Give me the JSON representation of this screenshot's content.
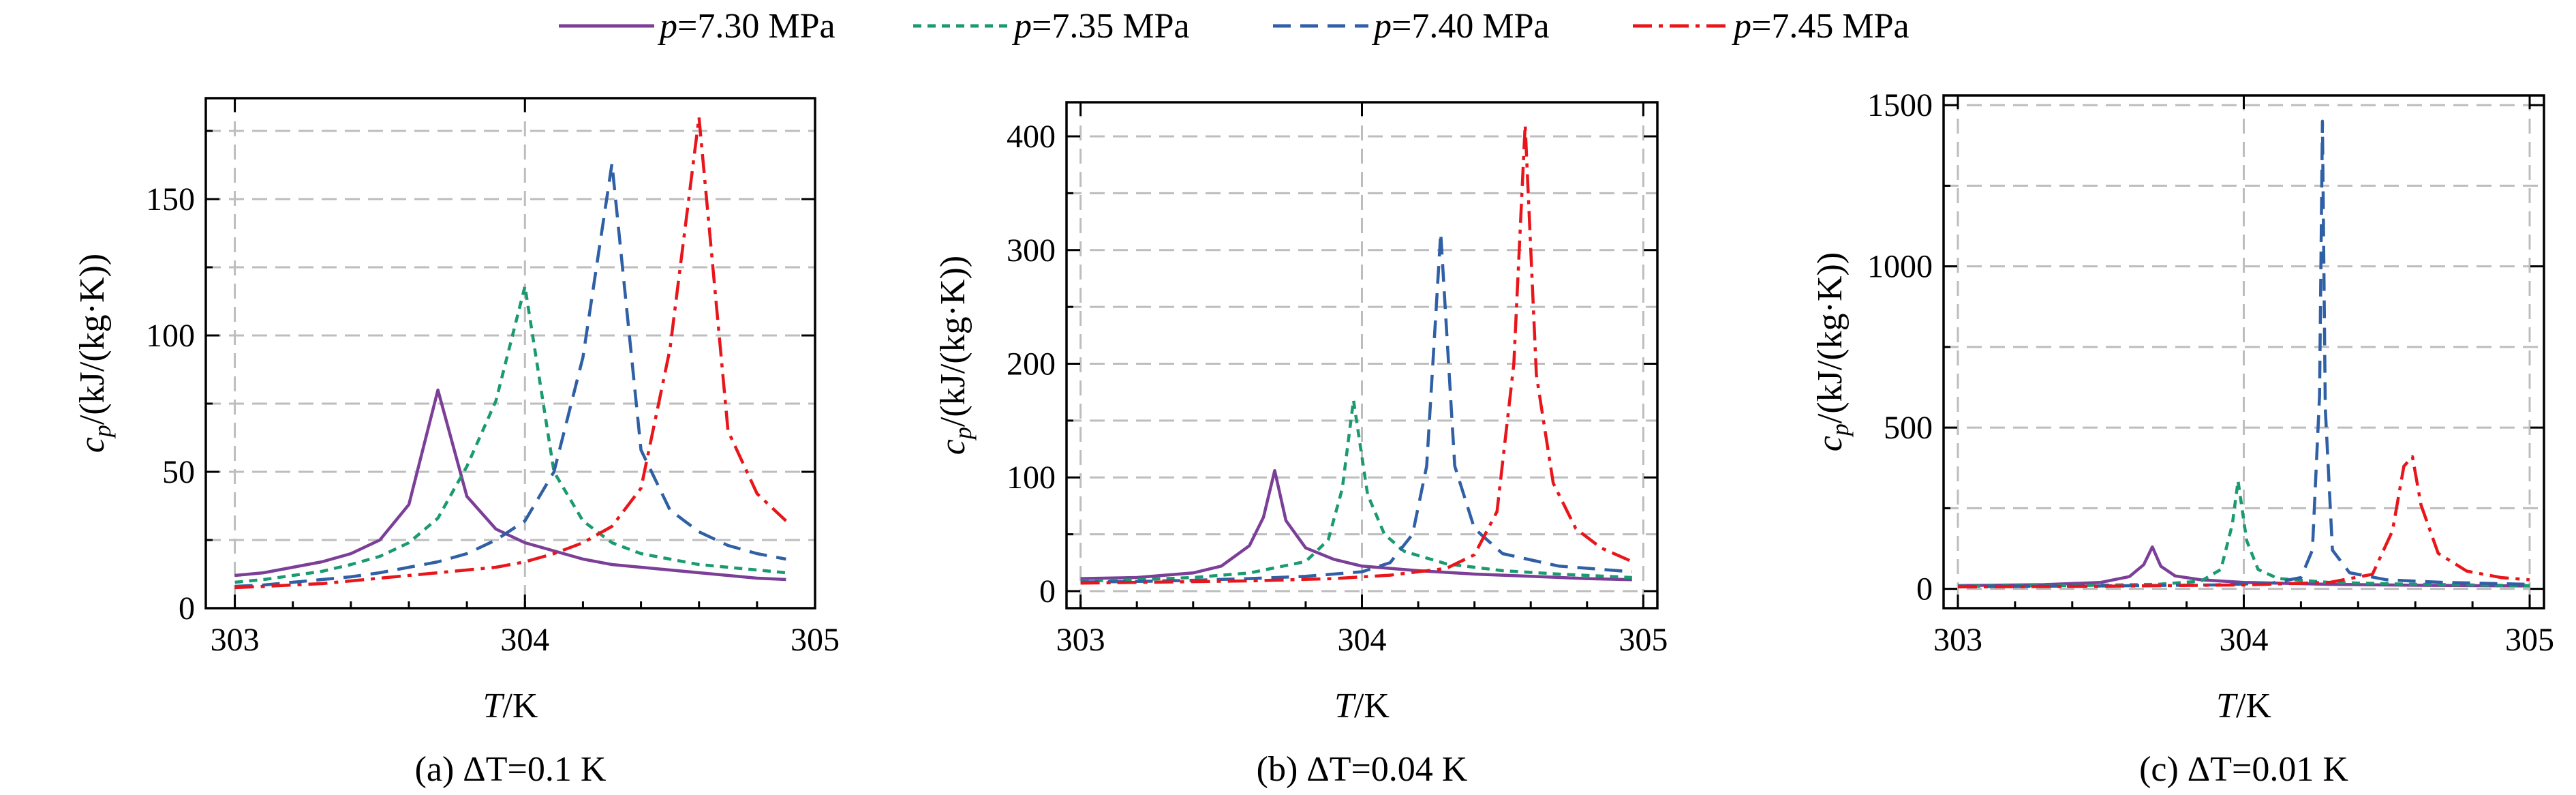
{
  "legend": {
    "location": "top-center",
    "entries": [
      {
        "var": "p",
        "value": "=7.30 MPa",
        "color": "#7b3f98",
        "dash": "solid"
      },
      {
        "var": "p",
        "value": "=7.35 MPa",
        "color": "#1a9a70",
        "dash": "dashed"
      },
      {
        "var": "p",
        "value": "=7.40 MPa",
        "color": "#2f5fa5",
        "dash": "longdash"
      },
      {
        "var": "p",
        "value": "=7.45 MPa",
        "color": "#e8161b",
        "dash": "dashdot"
      }
    ]
  },
  "chart_data": [
    {
      "type": "line",
      "caption": "(a) ΔT=0.1 K",
      "xlabel": {
        "var": "T",
        "rest": "/K"
      },
      "ylabel": {
        "var": "c",
        "sub": "p",
        "rest": "/(kJ/(kg·K))"
      },
      "xlim": [
        302.9,
        305.0
      ],
      "ylim": [
        0,
        187
      ],
      "xticks": [
        303,
        304,
        305
      ],
      "yticks": [
        0,
        50,
        100,
        150
      ],
      "grid": true,
      "series": [
        {
          "x": [
            303.0,
            303.1,
            303.2,
            303.3,
            303.4,
            303.5,
            303.6,
            303.7,
            303.8,
            303.9,
            304.0,
            304.1,
            304.2,
            304.3,
            304.4,
            304.5,
            304.6,
            304.7,
            304.8,
            304.9
          ],
          "y": [
            12,
            13,
            15,
            17,
            20,
            25,
            38,
            80,
            41,
            29,
            24,
            21,
            18,
            16,
            15,
            14,
            13,
            12,
            11,
            10.5
          ]
        },
        {
          "x": [
            303.0,
            303.1,
            303.2,
            303.3,
            303.4,
            303.5,
            303.6,
            303.7,
            303.8,
            303.9,
            304.0,
            304.1,
            304.2,
            304.3,
            304.4,
            304.5,
            304.6,
            304.7,
            304.8,
            304.9
          ],
          "y": [
            9.5,
            10.5,
            12,
            13.5,
            16,
            19,
            24,
            33,
            52,
            76,
            118,
            50,
            32,
            24,
            20,
            18,
            16,
            15,
            14,
            13
          ]
        },
        {
          "x": [
            303.0,
            303.1,
            303.2,
            303.3,
            303.4,
            303.5,
            303.6,
            303.7,
            303.8,
            303.9,
            304.0,
            304.1,
            304.2,
            304.3,
            304.4,
            304.5,
            304.6,
            304.7,
            304.8,
            304.9
          ],
          "y": [
            8,
            8.5,
            9.5,
            10.5,
            11.5,
            13,
            15,
            17,
            20,
            25,
            32,
            50,
            92,
            163,
            58,
            36,
            28,
            23,
            20,
            18
          ]
        },
        {
          "x": [
            303.0,
            303.1,
            303.2,
            303.3,
            303.4,
            303.5,
            303.6,
            303.7,
            303.8,
            303.9,
            304.0,
            304.1,
            304.2,
            304.3,
            304.4,
            304.5,
            304.6,
            304.7,
            304.8,
            304.9
          ],
          "y": [
            7.5,
            8,
            8.5,
            9,
            10,
            11,
            12,
            13,
            14,
            15,
            17,
            20,
            24,
            30,
            44,
            95,
            180,
            65,
            42,
            32
          ]
        }
      ]
    },
    {
      "type": "line",
      "caption": "(b) ΔT=0.04 K",
      "xlabel": {
        "var": "T",
        "rest": "/K"
      },
      "ylabel": {
        "var": "c",
        "sub": "p",
        "rest": "/(kJ/(kg·K))"
      },
      "xlim": [
        302.95,
        305.05
      ],
      "ylim": [
        -15,
        430
      ],
      "xticks": [
        303,
        304,
        305
      ],
      "yticks": [
        0,
        100,
        200,
        300,
        400
      ],
      "grid": true,
      "series": [
        {
          "x": [
            303.0,
            303.2,
            303.4,
            303.5,
            303.6,
            303.65,
            303.69,
            303.73,
            303.8,
            303.9,
            304.0,
            304.2,
            304.4,
            304.6,
            304.8,
            304.96
          ],
          "y": [
            11,
            12,
            16,
            22,
            40,
            65,
            106,
            62,
            38,
            28,
            22,
            18,
            15,
            13,
            11,
            10
          ]
        },
        {
          "x": [
            303.0,
            303.2,
            303.4,
            303.6,
            303.8,
            303.88,
            303.93,
            303.97,
            304.02,
            304.08,
            304.15,
            304.3,
            304.5,
            304.7,
            304.96
          ],
          "y": [
            9,
            10,
            12,
            16,
            26,
            45,
            90,
            168,
            85,
            50,
            35,
            24,
            18,
            15,
            12
          ]
        },
        {
          "x": [
            303.0,
            303.2,
            303.4,
            303.6,
            303.8,
            304.0,
            304.1,
            304.18,
            304.23,
            304.28,
            304.33,
            304.4,
            304.5,
            304.7,
            304.96
          ],
          "y": [
            8,
            8.5,
            9.5,
            11,
            13,
            17,
            25,
            50,
            110,
            315,
            110,
            55,
            33,
            22,
            17
          ]
        },
        {
          "x": [
            303.0,
            303.3,
            303.6,
            303.9,
            304.1,
            304.3,
            304.4,
            304.48,
            304.54,
            304.58,
            304.62,
            304.68,
            304.76,
            304.85,
            304.96
          ],
          "y": [
            7,
            8,
            9,
            11,
            14,
            20,
            32,
            70,
            200,
            410,
            190,
            95,
            55,
            38,
            26
          ]
        }
      ]
    },
    {
      "type": "line",
      "caption": "(c) ΔT=0.01 K",
      "xlabel": {
        "var": "T",
        "rest": "/K"
      },
      "ylabel": {
        "var": "c",
        "sub": "p",
        "rest": "/(kJ/(kg·K))"
      },
      "xlim": [
        302.95,
        305.05
      ],
      "ylim": [
        -60,
        1530
      ],
      "xticks": [
        303,
        304,
        305
      ],
      "yticks": [
        0,
        500,
        1000,
        1500
      ],
      "grid": true,
      "series": [
        {
          "x": [
            303.0,
            303.3,
            303.5,
            303.6,
            303.65,
            303.68,
            303.71,
            303.76,
            303.85,
            304.0,
            304.3,
            304.6,
            305.0
          ],
          "y": [
            10,
            13,
            20,
            38,
            75,
            130,
            70,
            40,
            28,
            20,
            14,
            11,
            9
          ]
        },
        {
          "x": [
            303.0,
            303.4,
            303.7,
            303.85,
            303.92,
            303.96,
            303.98,
            304.01,
            304.05,
            304.12,
            304.3,
            304.6,
            305.0
          ],
          "y": [
            8,
            10,
            14,
            24,
            60,
            200,
            335,
            150,
            60,
            32,
            20,
            14,
            10
          ]
        },
        {
          "x": [
            303.0,
            303.5,
            303.9,
            304.1,
            304.2,
            304.24,
            304.265,
            304.275,
            304.285,
            304.31,
            304.37,
            304.5,
            304.7,
            305.0
          ],
          "y": [
            7,
            9,
            12,
            18,
            35,
            120,
            600,
            1450,
            560,
            120,
            50,
            28,
            20,
            14
          ]
        },
        {
          "x": [
            303.0,
            303.5,
            304.0,
            304.3,
            304.45,
            304.52,
            304.56,
            304.59,
            304.62,
            304.68,
            304.78,
            304.9,
            305.0
          ],
          "y": [
            6,
            8,
            12,
            20,
            45,
            180,
            380,
            410,
            260,
            110,
            55,
            35,
            28
          ]
        }
      ]
    }
  ]
}
